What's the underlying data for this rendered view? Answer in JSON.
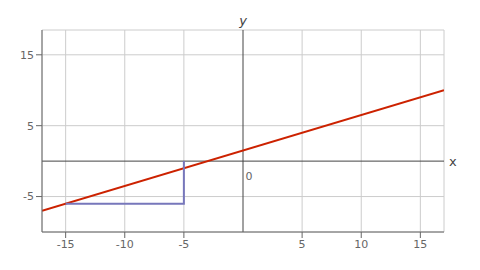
{
  "chart_data": {
    "type": "line",
    "xlabel": "x",
    "ylabel": "y",
    "xlim": [
      -17,
      17
    ],
    "ylim": [
      -10,
      18.5
    ],
    "xticks": [
      -15,
      -10,
      -5,
      5,
      10,
      15
    ],
    "yticks": [
      -5,
      5,
      15
    ],
    "grid": true,
    "series": [
      {
        "x": [
          -17,
          17
        ],
        "values": [
          -7,
          10
        ],
        "color": "#cc2200"
      },
      {
        "x": [
          -15,
          -5,
          -5
        ],
        "values": [
          -6,
          -6,
          0
        ],
        "color": "#7777bb"
      }
    ],
    "annotations": [
      {
        "text": "0",
        "x": 0.5,
        "y": -0.8
      }
    ]
  }
}
